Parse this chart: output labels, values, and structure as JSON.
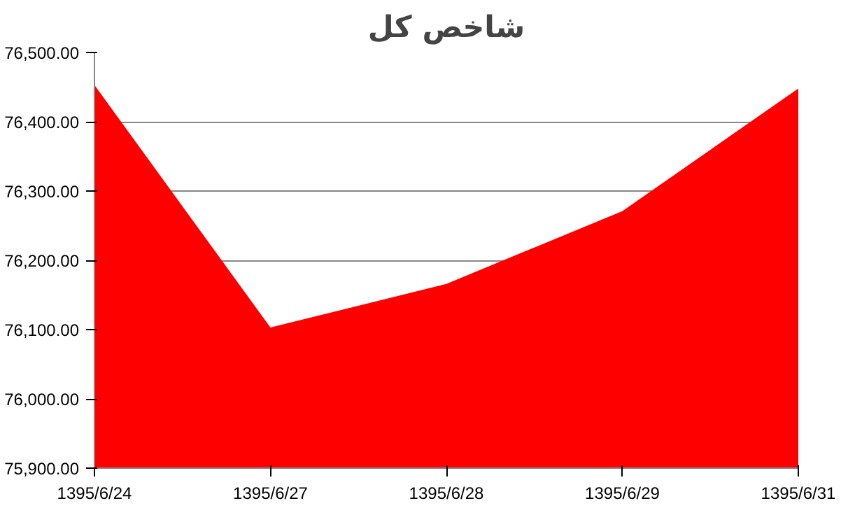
{
  "chart_data": {
    "type": "area",
    "title": "شاخص کل",
    "categories": [
      "1395/6/24",
      "1395/6/27",
      "1395/6/28",
      "1395/6/29",
      "1395/6/31"
    ],
    "series": [
      {
        "color": "#ff0000",
        "values": [
          76453,
          76103,
          76166,
          76271,
          76448
        ]
      }
    ],
    "ylim": [
      75900,
      76500
    ],
    "yticks": [
      {
        "value": 75900,
        "label": "75,900.00"
      },
      {
        "value": 76000,
        "label": "76,000.00"
      },
      {
        "value": 76100,
        "label": "76,100.00"
      },
      {
        "value": 76200,
        "label": "76,200.00"
      },
      {
        "value": 76300,
        "label": "76,300.00"
      },
      {
        "value": 76400,
        "label": "76,400.00"
      },
      {
        "value": 76500,
        "label": "76,500.00"
      }
    ],
    "grid": "y"
  }
}
